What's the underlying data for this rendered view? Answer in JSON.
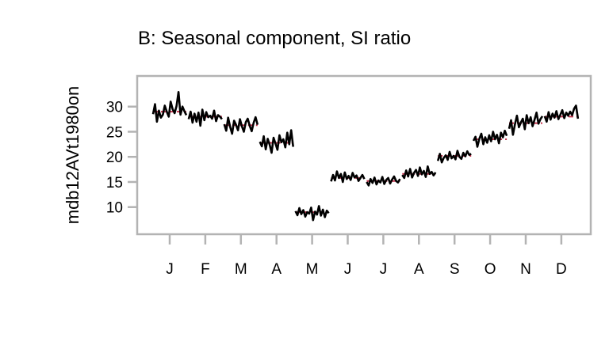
{
  "chart_data": {
    "type": "line",
    "title": "B: Seasonal component, SI ratio",
    "xlabel": "",
    "ylabel": "mdb12AVt1980on",
    "ylim": [
      4.6,
      36.1
    ],
    "yticks": [
      10,
      15,
      20,
      25,
      30
    ],
    "categories": [
      "J",
      "F",
      "M",
      "A",
      "M",
      "J",
      "J",
      "A",
      "S",
      "O",
      "N",
      "D"
    ],
    "seasonal_means": [
      29.0,
      28.0,
      26.3,
      22.8,
      9.0,
      15.8,
      15.2,
      16.6,
      20.2,
      23.5,
      26.7,
      28.0
    ],
    "si_ratio": [
      {
        "month": "J",
        "values": [
          28.5,
          30.5,
          27.0,
          29.2,
          27.8,
          28.4,
          30.2,
          29.0,
          28.0,
          31.0,
          29.5,
          28.7,
          30.1,
          32.9,
          28.4,
          30.0,
          29.1,
          28.3
        ]
      },
      {
        "month": "F",
        "values": [
          27.5,
          29.0,
          26.8,
          28.6,
          27.0,
          28.8,
          26.2,
          29.4,
          27.3,
          28.9,
          27.9,
          28.2,
          27.6,
          29.2,
          27.1,
          28.3,
          28.0,
          27.5
        ]
      },
      {
        "month": "M",
        "values": [
          26.5,
          25.2,
          27.8,
          26.0,
          24.6,
          27.2,
          26.4,
          25.3,
          27.5,
          26.1,
          25.0,
          26.9,
          27.6,
          26.2,
          25.1,
          26.8,
          27.9,
          26.4
        ]
      },
      {
        "month": "A",
        "values": [
          23.0,
          22.1,
          24.1,
          21.5,
          23.6,
          22.4,
          20.8,
          23.8,
          22.6,
          21.4,
          24.3,
          22.9,
          23.5,
          21.9,
          24.8,
          22.5,
          25.3,
          22.0
        ]
      },
      {
        "month": "M",
        "values": [
          9.2,
          8.4,
          9.8,
          8.6,
          9.4,
          8.1,
          9.0,
          8.7,
          9.9,
          7.4,
          9.1,
          8.5,
          10.2,
          8.3,
          9.5,
          8.0,
          9.3,
          8.8
        ]
      },
      {
        "month": "J",
        "values": [
          15.1,
          16.4,
          15.3,
          17.1,
          15.8,
          16.6,
          15.0,
          16.9,
          15.6,
          16.2,
          15.4,
          16.8,
          15.9,
          16.3,
          15.2,
          15.8,
          16.4,
          15.6
        ]
      },
      {
        "month": "J",
        "values": [
          15.0,
          14.3,
          15.6,
          14.8,
          15.9,
          14.5,
          15.3,
          14.9,
          16.0,
          14.6,
          15.4,
          15.8,
          14.7,
          15.5,
          16.1,
          15.2,
          14.9,
          15.6
        ]
      },
      {
        "month": "A",
        "values": [
          16.4,
          15.8,
          17.3,
          16.1,
          17.6,
          15.9,
          16.8,
          17.4,
          16.2,
          17.9,
          16.5,
          17.2,
          16.0,
          18.1,
          16.6,
          17.0,
          16.3,
          16.9
        ]
      },
      {
        "month": "S",
        "values": [
          19.2,
          20.6,
          18.9,
          19.8,
          20.3,
          19.4,
          21.0,
          19.7,
          20.2,
          19.5,
          21.2,
          20.0,
          19.6,
          20.8,
          20.1,
          21.1,
          20.4,
          20.6
        ]
      },
      {
        "month": "O",
        "values": [
          23.2,
          24.0,
          22.0,
          23.6,
          24.6,
          22.5,
          23.9,
          22.8,
          24.3,
          23.1,
          25.0,
          23.5,
          24.4,
          22.7,
          24.8,
          23.9,
          25.2,
          24.2
        ]
      },
      {
        "month": "N",
        "values": [
          25.6,
          27.3,
          24.4,
          26.5,
          28.2,
          25.9,
          26.8,
          27.6,
          25.5,
          28.3,
          26.7,
          27.9,
          26.1,
          27.4,
          28.8,
          26.6,
          27.5,
          28.1
        ]
      },
      {
        "month": "D",
        "values": [
          28.1,
          27.0,
          28.9,
          27.4,
          28.6,
          27.8,
          29.1,
          27.5,
          28.4,
          29.3,
          27.7,
          28.8,
          28.2,
          29.0,
          28.3,
          29.6,
          30.2,
          27.6
        ]
      }
    ]
  }
}
